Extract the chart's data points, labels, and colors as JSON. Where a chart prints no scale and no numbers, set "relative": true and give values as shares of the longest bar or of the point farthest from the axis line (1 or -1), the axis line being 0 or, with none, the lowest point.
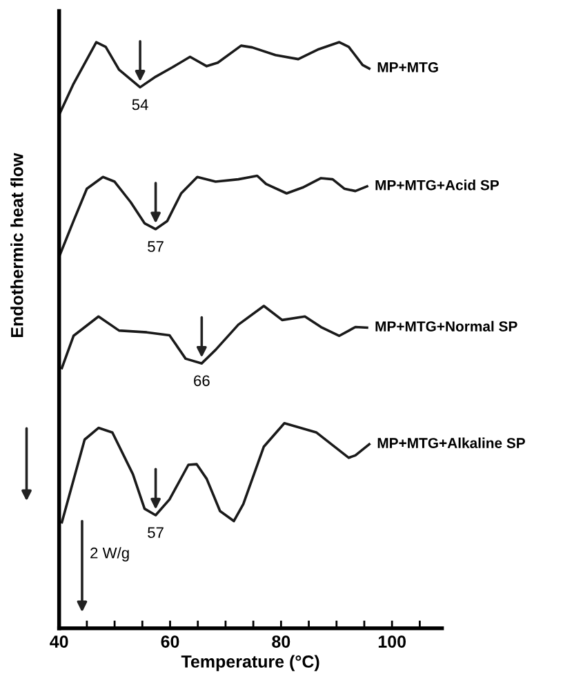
{
  "chart_data": {
    "type": "line",
    "relative": true,
    "xlabel": "Temperature (°C)",
    "ylabel": "Endothermic heat flow",
    "xlim": [
      40,
      109
    ],
    "xticks": [
      40,
      {
        "value": 45,
        "label": null
      },
      {
        "value": 50,
        "label": null
      },
      {
        "value": 55,
        "label": null
      },
      60,
      {
        "value": 65,
        "label": null
      },
      {
        "value": 70,
        "label": null
      },
      {
        "value": 75,
        "label": null
      },
      80,
      {
        "value": 85,
        "label": null
      },
      {
        "value": 90,
        "label": null
      },
      {
        "value": 95,
        "label": null
      },
      100,
      {
        "value": 105,
        "label": null
      }
    ],
    "series": [
      {
        "name": "MP+MTG",
        "color": "#1a1a1a",
        "x": [
          40.1,
          42.6,
          46.7,
          48.4,
          50.8,
          54.6,
          57.4,
          60.4,
          63.6,
          66.6,
          68.6,
          72.8,
          74.8,
          79.0,
          83.1,
          86.8,
          90.5,
          92.2,
          94.7,
          95.9
        ],
        "values": [
          0.878,
          0.929,
          1.0,
          0.992,
          0.953,
          0.923,
          0.941,
          0.957,
          0.975,
          0.959,
          0.965,
          0.994,
          0.991,
          0.978,
          0.971,
          0.988,
          1.0,
          0.992,
          0.961,
          0.955
        ]
      },
      {
        "name": "MP+MTG+Acid SP",
        "color": "#1a1a1a",
        "x": [
          40.1,
          42.6,
          45.0,
          47.9,
          50.0,
          52.9,
          55.4,
          57.4,
          59.5,
          62.0,
          64.9,
          68.2,
          72.3,
          75.7,
          77.3,
          81.0,
          83.9,
          87.2,
          89.3,
          91.4,
          93.4,
          95.5
        ],
        "values": [
          0.636,
          0.695,
          0.75,
          0.77,
          0.762,
          0.727,
          0.691,
          0.681,
          0.695,
          0.742,
          0.77,
          0.762,
          0.766,
          0.772,
          0.758,
          0.742,
          0.752,
          0.768,
          0.766,
          0.75,
          0.746,
          0.754
        ]
      },
      {
        "name": "MP+MTG+Normal SP",
        "color": "#1a1a1a",
        "x": [
          40.5,
          42.6,
          47.1,
          50.8,
          55.8,
          59.9,
          62.8,
          65.7,
          68.2,
          72.3,
          76.9,
          80.2,
          84.3,
          87.2,
          90.5,
          93.4,
          95.5
        ],
        "values": [
          0.444,
          0.499,
          0.532,
          0.508,
          0.505,
          0.5,
          0.46,
          0.452,
          0.475,
          0.518,
          0.55,
          0.526,
          0.532,
          0.514,
          0.499,
          0.514,
          0.513
        ]
      },
      {
        "name": "MP+MTG+Alkaline SP",
        "color": "#1a1a1a",
        "x": [
          40.5,
          44.6,
          47.1,
          49.6,
          53.3,
          55.4,
          57.4,
          59.9,
          63.3,
          64.8,
          66.6,
          69.0,
          71.5,
          73.2,
          76.9,
          80.6,
          86.4,
          92.2,
          93.4,
          95.9
        ],
        "values": [
          0.181,
          0.322,
          0.342,
          0.334,
          0.263,
          0.204,
          0.193,
          0.22,
          0.279,
          0.28,
          0.255,
          0.2,
          0.183,
          0.212,
          0.31,
          0.35,
          0.334,
          0.291,
          0.295,
          0.314
        ]
      }
    ],
    "annotations": [
      {
        "text": "54",
        "x": 54.6,
        "y": 0.923
      },
      {
        "text": "57",
        "x": 57.4,
        "y": 0.681
      },
      {
        "text": "66",
        "x": 65.7,
        "y": 0.452
      },
      {
        "text": "57",
        "x": 57.4,
        "y": 0.193
      },
      "2 W/g"
    ],
    "legend": false,
    "grid": false,
    "marker": "none",
    "line_style": "solid"
  }
}
